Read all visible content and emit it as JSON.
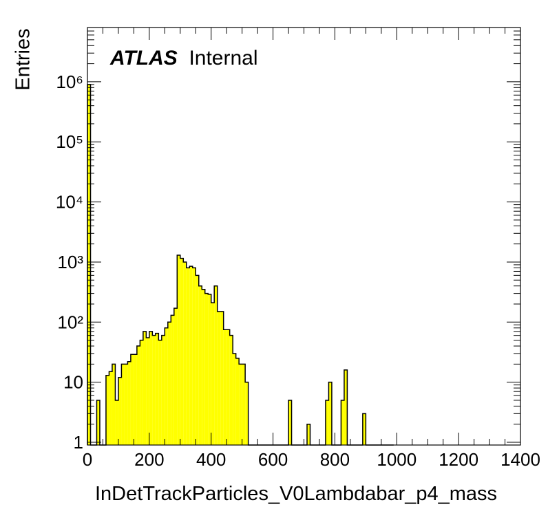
{
  "chart_data": {
    "type": "bar",
    "histogram": true,
    "brand": "ATLAS",
    "label": "Internal",
    "xlabel": "InDetTrackParticles_V0Lambdabar_p4_mass",
    "ylabel": "Entries",
    "xlim": [
      0,
      1400
    ],
    "ylim": [
      0.9,
      8000000
    ],
    "ylog": true,
    "bin_width": 10,
    "x_ticks": [
      "0",
      "200",
      "400",
      "600",
      "800",
      "1000",
      "1200",
      "1400"
    ],
    "y_ticks": [
      {
        "value": 1,
        "label": "1"
      },
      {
        "value": 10,
        "label": "10"
      },
      {
        "value": 100,
        "label": "10²"
      },
      {
        "value": 1000,
        "label": "10³"
      },
      {
        "value": 10000,
        "label": "10⁴"
      },
      {
        "value": 100000,
        "label": "10⁵"
      },
      {
        "value": 1000000,
        "label": "10⁶"
      }
    ],
    "fill_color": "#ffff00",
    "line_color": "#000000",
    "bin_edges_start": [
      0,
      10,
      20,
      30,
      40,
      50,
      60,
      70,
      80,
      90,
      100,
      110,
      120,
      130,
      140,
      150,
      160,
      170,
      180,
      190,
      200,
      210,
      220,
      230,
      240,
      250,
      260,
      270,
      280,
      290,
      300,
      310,
      320,
      330,
      340,
      350,
      360,
      370,
      380,
      390,
      400,
      410,
      420,
      430,
      440,
      450,
      460,
      470,
      480,
      490,
      500,
      510,
      520,
      530,
      540,
      550,
      560,
      570,
      580,
      590,
      600,
      610,
      620,
      630,
      640,
      650,
      660,
      670,
      680,
      690,
      700,
      710,
      720,
      730,
      740,
      750,
      760,
      770,
      780,
      790,
      800,
      810,
      820,
      830,
      840,
      850,
      860,
      870,
      880,
      890,
      900,
      910,
      920,
      930,
      940,
      950,
      960,
      970,
      980
    ],
    "values": [
      900000,
      0,
      0,
      5,
      0,
      0,
      13,
      15,
      20,
      5,
      12,
      20,
      20,
      22,
      29,
      29,
      40,
      50,
      70,
      55,
      70,
      60,
      65,
      50,
      60,
      80,
      100,
      130,
      170,
      1300,
      1150,
      1000,
      800,
      850,
      800,
      600,
      400,
      350,
      300,
      290,
      210,
      400,
      150,
      150,
      75,
      75,
      60,
      30,
      25,
      20,
      20,
      10,
      0,
      0,
      0,
      0,
      0,
      0,
      0,
      0,
      0,
      0,
      0,
      0,
      0,
      5,
      0,
      0,
      0,
      0,
      0,
      2,
      0,
      0,
      0,
      0,
      0,
      5,
      10,
      0,
      0,
      0,
      5,
      16,
      0,
      0,
      0,
      0,
      0,
      3,
      0,
      0,
      0,
      0,
      0,
      0,
      0,
      0,
      0
    ]
  }
}
